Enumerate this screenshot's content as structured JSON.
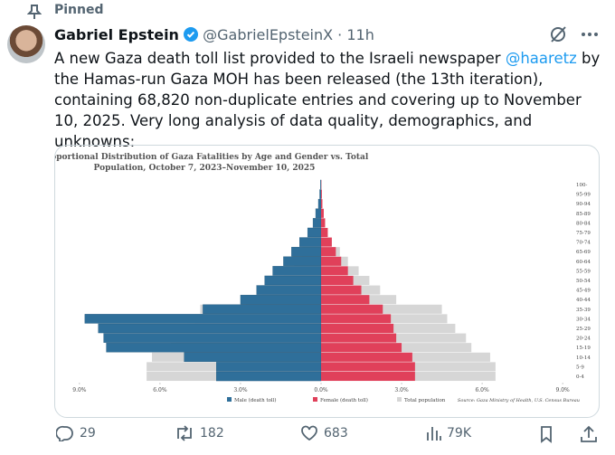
{
  "pinned": "Pinned",
  "author": {
    "name": "Gabriel Epstein",
    "handle": "@GabrielEpsteinX",
    "time": "11h"
  },
  "tweet": {
    "text_parts": [
      "A new Gaza death toll list provided to the Israeli newspaper ",
      "@haaretz",
      " by the Hamas-run Gaza MOH has been released (the 13th iteration), containing 68,820 non-duplicate entries and covering up to November 10, 2025. Very long analysis of data quality, demographics, and unknowns:"
    ]
  },
  "chart_data": {
    "type": "pyramid",
    "title": [
      "Proportional Distribution of Gaza Fatalities by Age and Gender vs. Total",
      "Population, October 7, 2023–November 10, 2025"
    ],
    "categories": [
      "0-4",
      "5-9",
      "10-14",
      "15-19",
      "20-24",
      "25-29",
      "30-34",
      "35-39",
      "40-44",
      "45-49",
      "50-54",
      "55-59",
      "60-64",
      "65-69",
      "70-74",
      "75-79",
      "80-84",
      "85-89",
      "90-94",
      "95-99",
      "100-"
    ],
    "series": [
      {
        "name": "Total population",
        "color": "#d6d6d6",
        "values": [
          6.5,
          6.5,
          6.3,
          5.6,
          5.4,
          5.0,
          4.7,
          4.5,
          2.8,
          2.2,
          1.8,
          1.4,
          1.0,
          0.7,
          0.4,
          0.25,
          0.15,
          0.08,
          0.04,
          0.02,
          0.01
        ]
      },
      {
        "name": "Male (death toll)",
        "color": "#2f6f9a",
        "values": [
          3.9,
          3.9,
          5.1,
          8.0,
          8.1,
          8.3,
          8.8,
          4.4,
          3.0,
          2.4,
          2.1,
          1.8,
          1.4,
          1.1,
          0.8,
          0.5,
          0.3,
          0.2,
          0.1,
          0.05,
          0.02
        ]
      },
      {
        "name": "Female (death toll)",
        "color": "#e0405a",
        "values": [
          3.5,
          3.5,
          3.4,
          3.0,
          2.8,
          2.7,
          2.6,
          2.3,
          1.8,
          1.5,
          1.2,
          1.0,
          0.75,
          0.55,
          0.4,
          0.25,
          0.15,
          0.1,
          0.05,
          0.03,
          0.01
        ]
      }
    ],
    "xlim": [
      -9.3,
      9.3
    ],
    "xticks": [
      {
        "value": -9,
        "label": "9.0%"
      },
      {
        "value": -6,
        "label": "6.0%"
      },
      {
        "value": -3,
        "label": "3.0%"
      },
      {
        "value": 0,
        "label": "0.0%"
      },
      {
        "value": 3,
        "label": "3.0%"
      },
      {
        "value": 6,
        "label": "6.0%"
      },
      {
        "value": 9,
        "label": "9.0%"
      }
    ],
    "source": "Source: Gaza Ministry of Health, U.S. Census Bureau"
  },
  "actions": {
    "replies": "29",
    "reposts": "182",
    "likes": "683",
    "views": "79K"
  }
}
